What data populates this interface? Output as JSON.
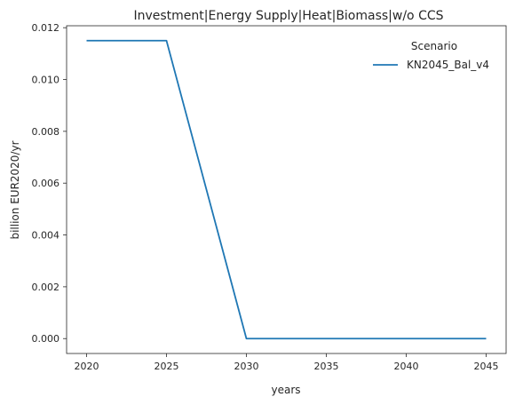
{
  "chart_data": {
    "type": "line",
    "title": "Investment|Energy Supply|Heat|Biomass|w/o CCS",
    "xlabel": "years",
    "ylabel": "billion EUR2020/yr",
    "x": [
      2020,
      2025,
      2030,
      2035,
      2040,
      2045
    ],
    "xticks": [
      "2020",
      "2025",
      "2030",
      "2035",
      "2040",
      "2045"
    ],
    "yticks": [
      "0.000",
      "0.002",
      "0.004",
      "0.006",
      "0.008",
      "0.010",
      "0.012"
    ],
    "xlim": [
      2018.75,
      2046.25
    ],
    "ylim": [
      -0.000575,
      0.012075
    ],
    "grid": false,
    "legend": {
      "title": "Scenario",
      "position": "top-right"
    },
    "series": [
      {
        "name": "KN2045_Bal_v4",
        "color": "#1f77b4",
        "values": [
          0.0115,
          0.0115,
          0.0,
          0.0,
          0.0,
          0.0
        ]
      }
    ]
  }
}
